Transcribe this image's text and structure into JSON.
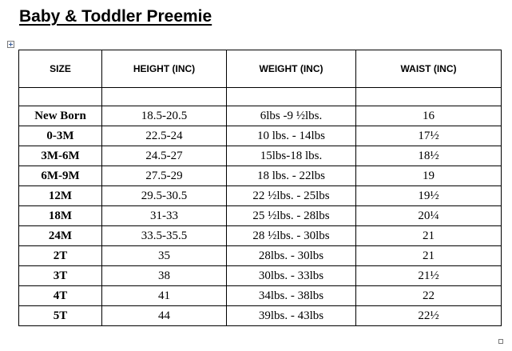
{
  "title": "Baby & Toddler Preemie",
  "headers": {
    "size": "SIZE",
    "height": "HEIGHT (INC)",
    "weight": "WEIGHT (INC)",
    "waist": "WAIST (INC)"
  },
  "rows": [
    {
      "size": "New Born",
      "height": "18.5-20.5",
      "weight": "6lbs -9 ½lbs.",
      "waist": "16"
    },
    {
      "size": "0-3M",
      "height": "22.5-24",
      "weight": "10 lbs. - 14lbs",
      "waist": "17½"
    },
    {
      "size": "3M-6M",
      "height": "24.5-27",
      "weight": "15lbs-18 lbs.",
      "waist": "18½"
    },
    {
      "size": "6M-9M",
      "height": "27.5-29",
      "weight": "18 lbs. - 22lbs",
      "waist": "19"
    },
    {
      "size": "12M",
      "height": "29.5-30.5",
      "weight": "22 ½lbs. - 25lbs",
      "waist": "19½"
    },
    {
      "size": "18M",
      "height": "31-33",
      "weight": "25 ½lbs. - 28lbs",
      "waist": "20¼"
    },
    {
      "size": "24M",
      "height": "33.5-35.5",
      "weight": "28 ½lbs. - 30lbs",
      "waist": "21"
    },
    {
      "size": "2T",
      "height": "35",
      "weight": "28lbs. - 30lbs",
      "waist": "21"
    },
    {
      "size": "3T",
      "height": "38",
      "weight": "30lbs. - 33lbs",
      "waist": "21½"
    },
    {
      "size": "4T",
      "height": "41",
      "weight": "34lbs. - 38lbs",
      "waist": "22"
    },
    {
      "size": "5T",
      "height": "44",
      "weight": "39lbs. - 43lbs",
      "waist": "22½"
    }
  ]
}
